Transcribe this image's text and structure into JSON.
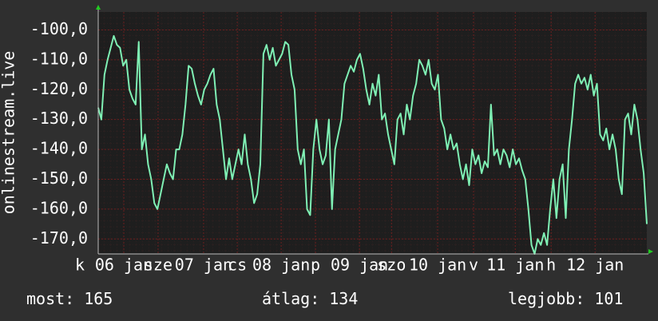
{
  "chart_data": {
    "type": "line",
    "y_axis_label": "onlinestream.live",
    "color": "#7ff0b4",
    "ylim": [
      -175,
      -94
    ],
    "yticks": [
      {
        "value": -100,
        "label": "-100,0"
      },
      {
        "value": -110,
        "label": "-110,0"
      },
      {
        "value": -120,
        "label": "-120,0"
      },
      {
        "value": -130,
        "label": "-130,0"
      },
      {
        "value": -140,
        "label": "-140,0"
      },
      {
        "value": -150,
        "label": "-150,0"
      },
      {
        "value": -160,
        "label": "-160,0"
      },
      {
        "value": -170,
        "label": "-170,0"
      }
    ],
    "xlim": [
      0,
      176
    ],
    "xticks": [
      {
        "value": -5.9,
        "label": "k"
      },
      {
        "value": 8.2,
        "label": "06 jan"
      },
      {
        "value": 19.2,
        "label": "sze"
      },
      {
        "value": 33.8,
        "label": "07 jan"
      },
      {
        "value": 44.6,
        "label": "cs"
      },
      {
        "value": 58.7,
        "label": "08 jan"
      },
      {
        "value": 69.7,
        "label": "p"
      },
      {
        "value": 83.8,
        "label": "09 jan"
      },
      {
        "value": 94.1,
        "label": "szo"
      },
      {
        "value": 108.9,
        "label": "10 jan"
      },
      {
        "value": 120.4,
        "label": "v"
      },
      {
        "value": 133.8,
        "label": "11 jan"
      },
      {
        "value": 145.3,
        "label": "h"
      },
      {
        "value": 159.4,
        "label": "12 jan"
      }
    ],
    "grid": true,
    "values": [
      -126,
      -130,
      -115,
      -110,
      -106,
      -102,
      -105,
      -106,
      -112,
      -110,
      -120,
      -123,
      -125,
      -104,
      -140,
      -135,
      -145,
      -150,
      -158,
      -160,
      -155,
      -150,
      -145,
      -148,
      -150,
      -140,
      -140,
      -135,
      -125,
      -112,
      -113,
      -118,
      -122,
      -125,
      -120,
      -118,
      -115,
      -113,
      -125,
      -130,
      -140,
      -150,
      -143,
      -150,
      -145,
      -140,
      -145,
      -135,
      -145,
      -150,
      -158,
      -155,
      -145,
      -108,
      -105,
      -110,
      -106,
      -112,
      -110,
      -108,
      -104,
      -105,
      -115,
      -120,
      -140,
      -145,
      -140,
      -160,
      -162,
      -140,
      -130,
      -140,
      -145,
      -142,
      -130,
      -160,
      -140,
      -135,
      -130,
      -118,
      -115,
      -112,
      -114,
      -110,
      -108,
      -113,
      -120,
      -125,
      -118,
      -122,
      -115,
      -130,
      -128,
      -135,
      -140,
      -145,
      -130,
      -128,
      -135,
      -125,
      -130,
      -122,
      -118,
      -110,
      -112,
      -115,
      -110,
      -118,
      -120,
      -115,
      -130,
      -133,
      -140,
      -135,
      -140,
      -138,
      -145,
      -150,
      -145,
      -152,
      -140,
      -145,
      -142,
      -148,
      -144,
      -146,
      -125,
      -142,
      -140,
      -145,
      -140,
      -142,
      -146,
      -140,
      -145,
      -143,
      -147,
      -150,
      -160,
      -172,
      -175,
      -170,
      -172,
      -168,
      -172,
      -160,
      -150,
      -163,
      -150,
      -145,
      -163,
      -140,
      -130,
      -118,
      -115,
      -118,
      -116,
      -120,
      -115,
      -122,
      -118,
      -135,
      -137,
      -133,
      -140,
      -135,
      -140,
      -150,
      -155,
      -130,
      -128,
      -135,
      -125,
      -130,
      -140,
      -148,
      -165
    ],
    "stats": [
      {
        "label": "most:",
        "value": 165
      },
      {
        "label": "átlag:",
        "value": 134
      },
      {
        "label": "legjobb:",
        "value": 101
      }
    ]
  }
}
